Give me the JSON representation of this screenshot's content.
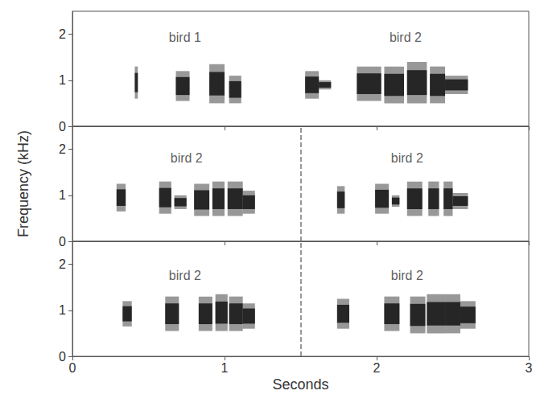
{
  "chart_data": [
    {
      "type": "spectrogram",
      "xlim": [
        0,
        3
      ],
      "xticks": [
        0,
        1,
        2,
        3
      ],
      "ylim": [
        0,
        2.5
      ],
      "yticks": [
        0,
        1,
        2
      ],
      "tick_labels": "y",
      "color": "#1a1a1a",
      "annotations": [
        {
          "text": "bird 1",
          "x": 0.74,
          "y": 1.93
        },
        {
          "text": "bird 2",
          "x": 2.19,
          "y": 1.93
        }
      ],
      "syllables": [
        [
          0.41,
          0.43,
          0.6,
          1.3
        ],
        [
          0.68,
          0.77,
          0.55,
          1.2
        ],
        [
          0.9,
          1.0,
          0.5,
          1.35
        ],
        [
          1.03,
          1.11,
          0.5,
          1.1
        ],
        [
          1.53,
          1.62,
          0.6,
          1.2
        ],
        [
          1.62,
          1.7,
          0.8,
          1.0
        ],
        [
          1.87,
          2.03,
          0.55,
          1.3
        ],
        [
          2.05,
          2.18,
          0.5,
          1.3
        ],
        [
          2.2,
          2.33,
          0.5,
          1.4
        ],
        [
          2.35,
          2.45,
          0.5,
          1.3
        ],
        [
          2.45,
          2.6,
          0.7,
          1.1
        ]
      ]
    },
    {
      "type": "spectrogram",
      "xlim": [
        0,
        3
      ],
      "xticks": [
        0,
        1,
        2,
        3
      ],
      "ylim": [
        0,
        2.5
      ],
      "yticks": [
        0,
        1,
        2
      ],
      "tick_labels": "y",
      "color": "#1a1a1a",
      "y_label": "Frequency (kHz)",
      "reference_lines": [
        {
          "x": 1.5,
          "line_style": "dashed"
        }
      ],
      "annotations": [
        {
          "text": "bird 2",
          "x": 0.75,
          "y": 1.81
        },
        {
          "text": "bird 2",
          "x": 2.2,
          "y": 1.81
        }
      ],
      "syllables": [
        [
          0.29,
          0.35,
          0.65,
          1.25
        ],
        [
          0.57,
          0.65,
          0.6,
          1.3
        ],
        [
          0.67,
          0.75,
          0.7,
          1.0
        ],
        [
          0.8,
          0.9,
          0.55,
          1.25
        ],
        [
          0.92,
          1.0,
          0.55,
          1.3
        ],
        [
          1.02,
          1.12,
          0.55,
          1.3
        ],
        [
          1.12,
          1.2,
          0.6,
          1.1
        ],
        [
          1.74,
          1.79,
          0.6,
          1.2
        ],
        [
          1.99,
          2.08,
          0.6,
          1.25
        ],
        [
          2.1,
          2.15,
          0.75,
          1.0
        ],
        [
          2.2,
          2.3,
          0.55,
          1.3
        ],
        [
          2.34,
          2.41,
          0.55,
          1.3
        ],
        [
          2.44,
          2.5,
          0.55,
          1.3
        ],
        [
          2.5,
          2.6,
          0.7,
          1.05
        ]
      ]
    },
    {
      "type": "spectrogram",
      "xlim": [
        0,
        3
      ],
      "xticks": [
        0,
        1,
        2,
        3
      ],
      "ylim": [
        0,
        2.5
      ],
      "yticks": [
        0,
        1,
        2
      ],
      "color": "#1a1a1a",
      "x_label": "Seconds",
      "reference_lines": [
        {
          "x": 1.5,
          "line_style": "dashed"
        }
      ],
      "annotations": [
        {
          "text": "bird 2",
          "x": 0.74,
          "y": 1.76
        },
        {
          "text": "bird 2",
          "x": 2.2,
          "y": 1.76
        }
      ],
      "syllables": [
        [
          0.33,
          0.39,
          0.65,
          1.2
        ],
        [
          0.61,
          0.7,
          0.55,
          1.3
        ],
        [
          0.83,
          0.92,
          0.55,
          1.3
        ],
        [
          0.94,
          1.02,
          0.55,
          1.35
        ],
        [
          1.03,
          1.12,
          0.55,
          1.3
        ],
        [
          1.12,
          1.2,
          0.6,
          1.15
        ],
        [
          1.74,
          1.82,
          0.6,
          1.25
        ],
        [
          2.05,
          2.15,
          0.55,
          1.3
        ],
        [
          2.22,
          2.32,
          0.5,
          1.3
        ],
        [
          2.33,
          2.45,
          0.5,
          1.35
        ],
        [
          2.45,
          2.55,
          0.5,
          1.35
        ],
        [
          2.55,
          2.65,
          0.6,
          1.2
        ]
      ]
    }
  ]
}
